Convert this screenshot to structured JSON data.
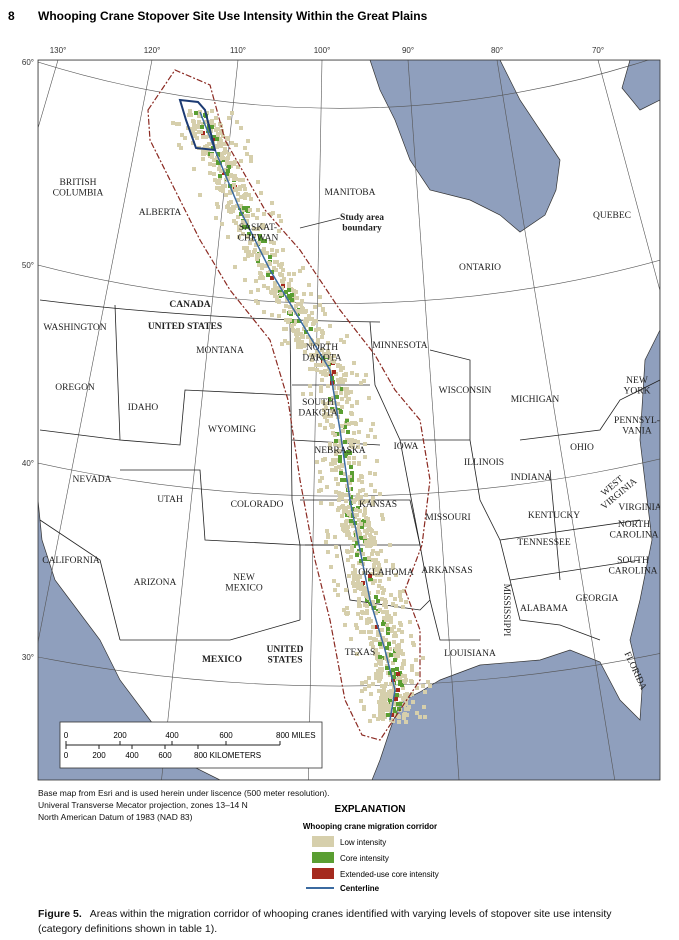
{
  "header": {
    "page_number": "8",
    "title": "Whooping Crane Stopover Site Use Intensity Within the Great Plains"
  },
  "map": {
    "longitude_labels": [
      "130°",
      "120°",
      "110°",
      "100°",
      "90°",
      "80°",
      "70°"
    ],
    "latitude_labels": [
      "60°",
      "50°",
      "40°",
      "30°"
    ],
    "labels": [
      [
        "BRITISH",
        "COLUMBIA"
      ],
      [
        "ALBERTA"
      ],
      [
        "SASKAT-",
        "CHEWAN"
      ],
      [
        "MANITOBA"
      ],
      [
        "Study area",
        "boundary"
      ],
      [
        "ONTARIO"
      ],
      [
        "QUEBEC"
      ],
      [
        "CANADA"
      ],
      [
        "UNITED STATES"
      ],
      [
        "WASHINGTON"
      ],
      [
        "MONTANA"
      ],
      [
        "NORTH",
        "DAKOTA"
      ],
      [
        "MINNESOTA"
      ],
      [
        "OREGON"
      ],
      [
        "IDAHO"
      ],
      [
        "WYOMING"
      ],
      [
        "SOUTH",
        "DAKOTA"
      ],
      [
        "WISCONSIN"
      ],
      [
        "MICHIGAN"
      ],
      [
        "NEW",
        "YORK"
      ],
      [
        "PENNSYL-",
        "VANIA"
      ],
      [
        "NEBRASKA"
      ],
      [
        "IOWA"
      ],
      [
        "ILLINOIS"
      ],
      [
        "OHIO"
      ],
      [
        "INDIANA"
      ],
      [
        "NEVADA"
      ],
      [
        "UTAH"
      ],
      [
        "COLORADO"
      ],
      [
        "KANSAS"
      ],
      [
        "MISSOURI"
      ],
      [
        "KENTUCKY"
      ],
      [
        "WEST",
        "VIRGINIA"
      ],
      [
        "VIRGINIA"
      ],
      [
        "NORTH",
        "CAROLINA"
      ],
      [
        "TENNESSEE"
      ],
      [
        "CALIFORNIA"
      ],
      [
        "ARIZONA"
      ],
      [
        "NEW",
        "MEXICO"
      ],
      [
        "OKLAHOMA"
      ],
      [
        "ARKANSAS"
      ],
      [
        "SOUTH",
        "CAROLINA"
      ],
      [
        "MISSISSIPPI"
      ],
      [
        "ALABAMA"
      ],
      [
        "GEORGIA"
      ],
      [
        "TEXAS"
      ],
      [
        "LOUISIANA"
      ],
      [
        "UNITED",
        "STATES"
      ],
      [
        "MEXICO"
      ],
      [
        "FLORIDA"
      ]
    ],
    "scale_bar": {
      "miles": [
        "0",
        "200",
        "400",
        "600",
        "800 MILES"
      ],
      "kilometers": [
        "0",
        "200",
        "400",
        "600",
        "800 KILOMETERS"
      ]
    }
  },
  "credits": [
    "Base map from Esri and is used herein under liscence (500 meter resolution).",
    "Univeral Transverse Mecator projection, zones 13–14 N",
    "North American Datum of 1983 (NAD 83)"
  ],
  "explanation": {
    "title": "EXPLANATION",
    "subtitle": "Whooping crane migration corridor",
    "items": [
      "Low intensity",
      "Core intensity",
      "Extended-use core intensity"
    ],
    "centerline": "Centerline"
  },
  "caption": {
    "label": "Figure 5.",
    "text": "Areas within the migration corridor of whooping cranes identified with varying levels of stopover site use intensity (category definitions shown in table 1)."
  }
}
